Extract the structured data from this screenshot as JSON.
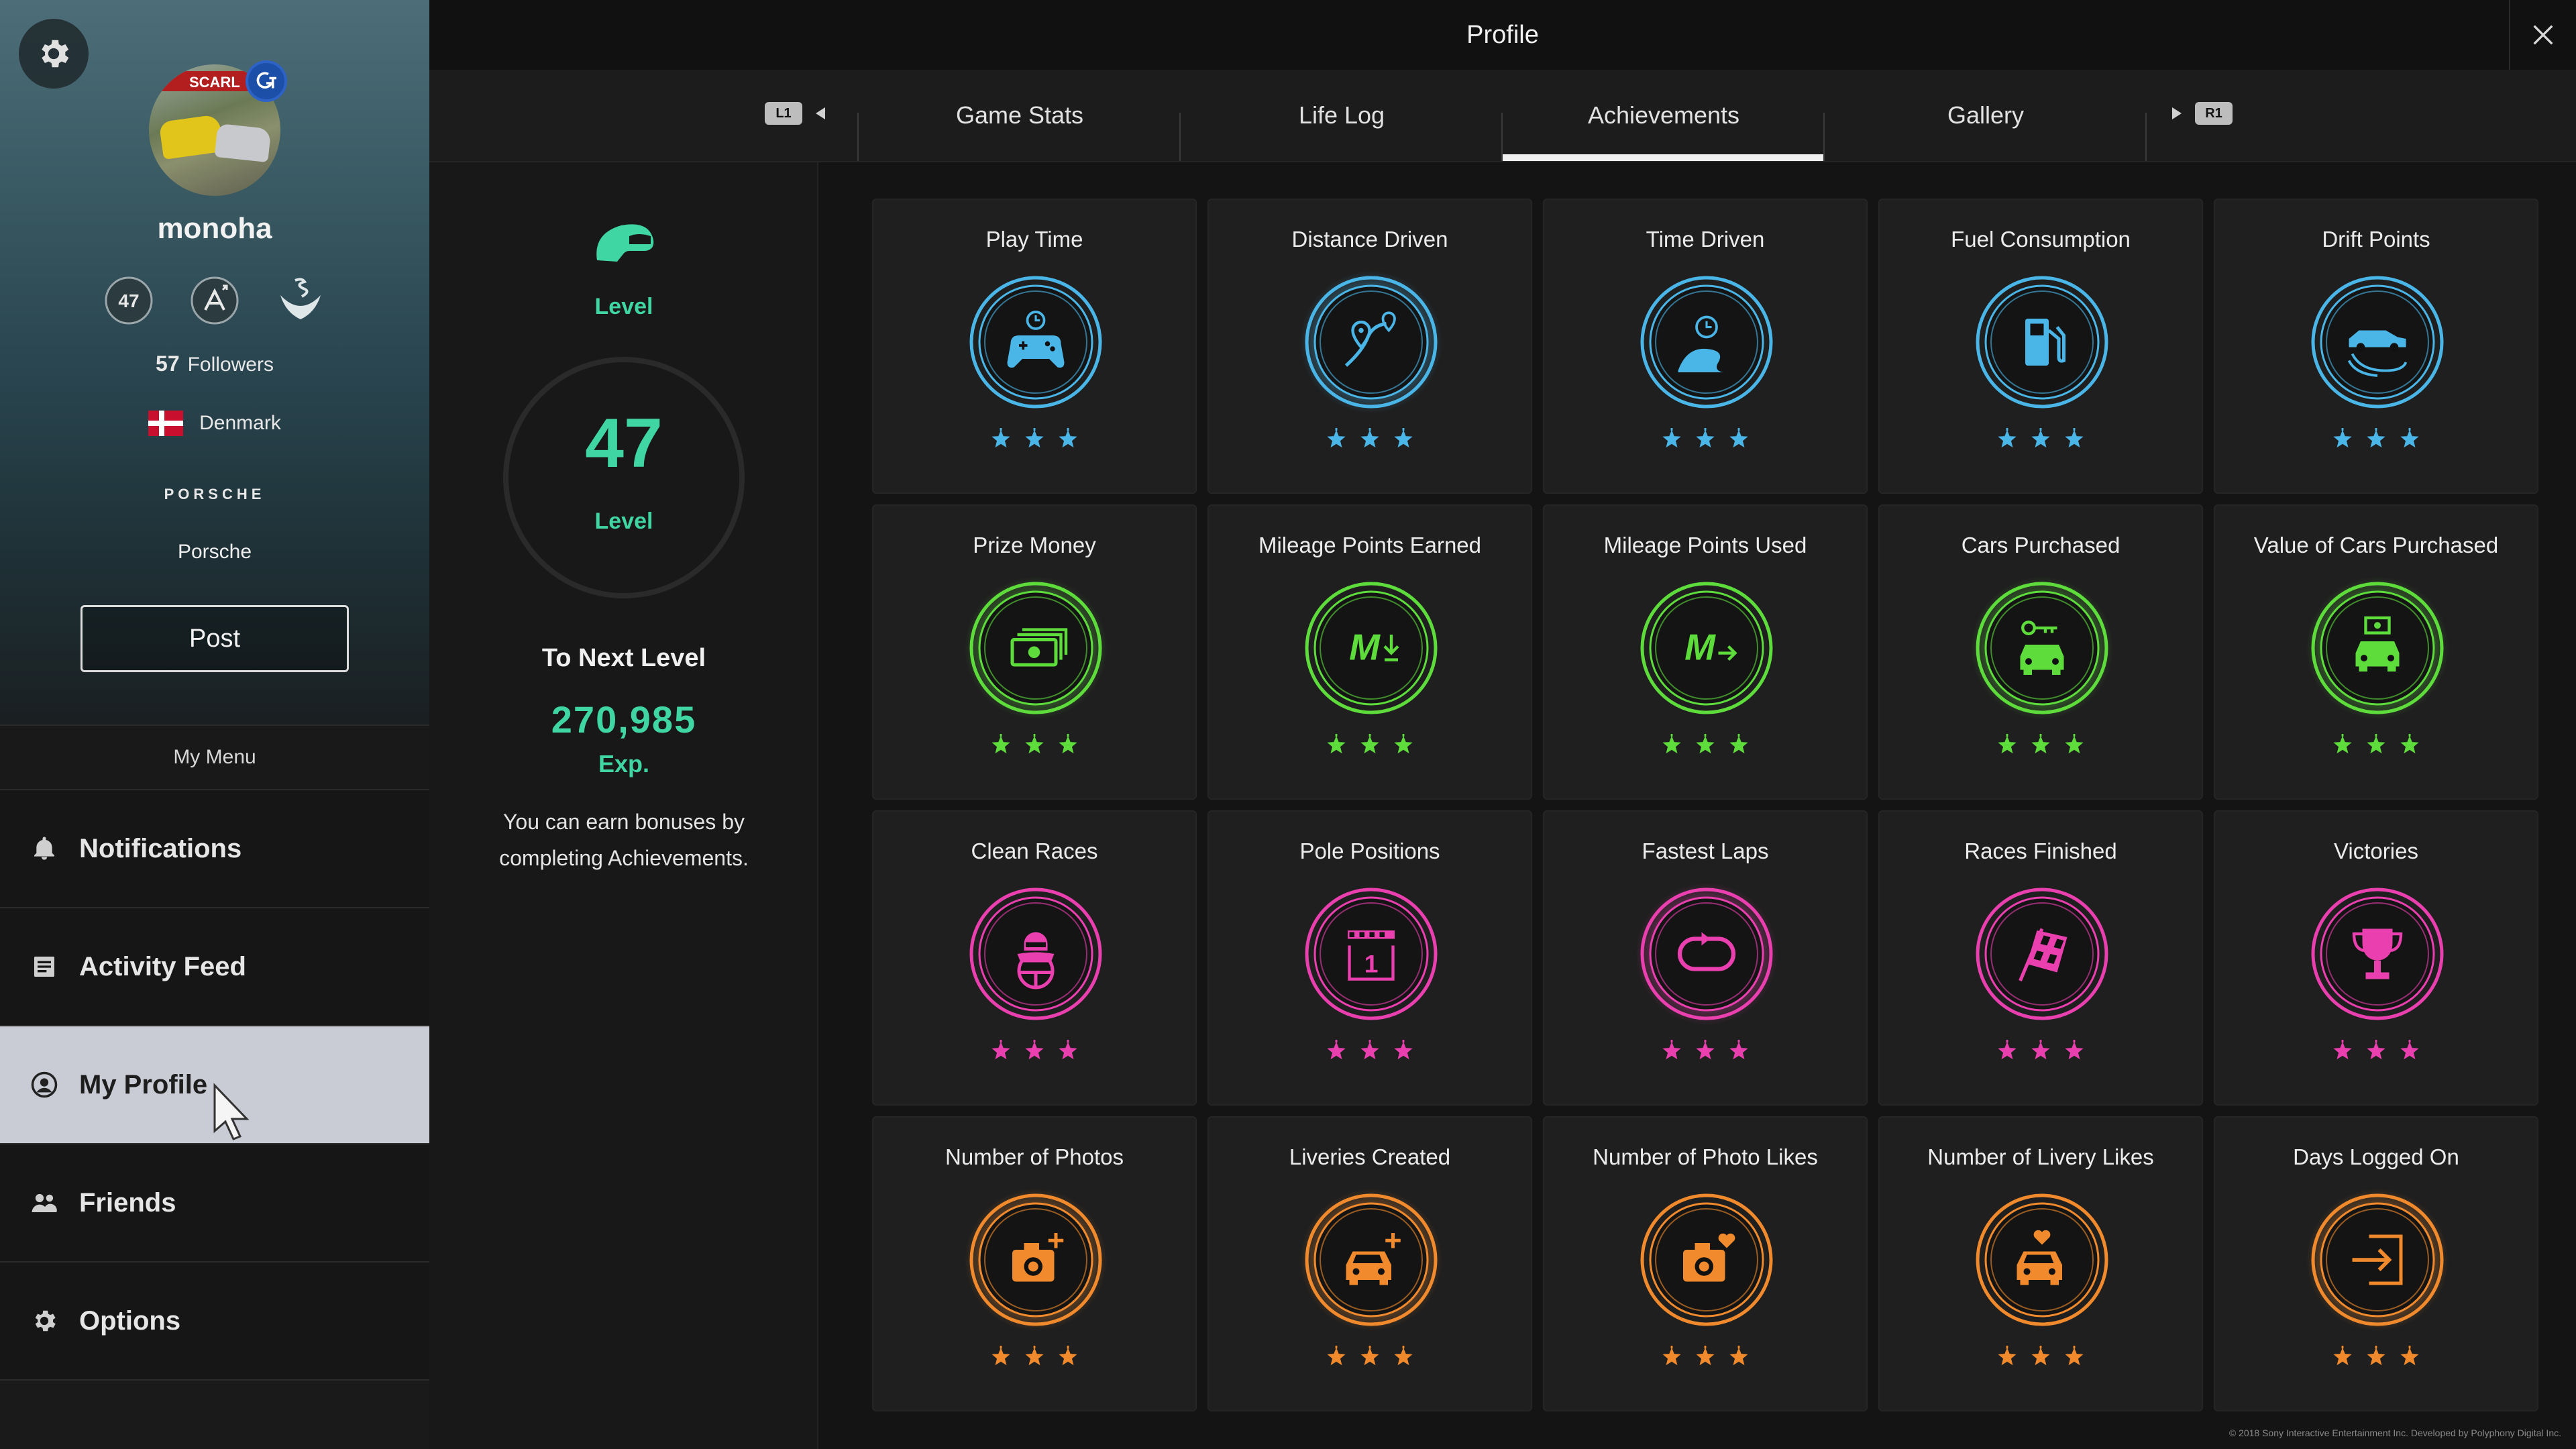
{
  "sidebar": {
    "username": "monoha",
    "level_badge": "47",
    "followers_count": "57",
    "followers_label": "Followers",
    "country": "Denmark",
    "brand_logo": "PORSCHE",
    "brand_name": "Porsche",
    "post_label": "Post",
    "menu_title": "My Menu",
    "menu_items": [
      {
        "label": "Notifications",
        "icon": "bell-icon"
      },
      {
        "label": "Activity Feed",
        "icon": "feed-icon"
      },
      {
        "label": "My Profile",
        "icon": "profile-icon",
        "active": true
      },
      {
        "label": "Friends",
        "icon": "friends-icon"
      },
      {
        "label": "Options",
        "icon": "gear-icon"
      }
    ],
    "avatar_banner": "SCARL"
  },
  "header": {
    "title": "Profile"
  },
  "tabs": {
    "left_hint": "L1",
    "right_hint": "R1",
    "items": [
      {
        "label": "Game Stats"
      },
      {
        "label": "Life Log"
      },
      {
        "label": "Achievements",
        "active": true
      },
      {
        "label": "Gallery"
      }
    ]
  },
  "level_panel": {
    "label_top": "Level",
    "level": "47",
    "label_bottom": "Level",
    "next_label": "To Next Level",
    "next_value": "270,985",
    "next_unit": "Exp.",
    "bonus_text": "You can earn bonuses by completing Achievements."
  },
  "colors": {
    "accent": "#3fd6a4",
    "blue": "#4ab6e8",
    "green": "#5ddc3c",
    "pink": "#ea3fae",
    "orange": "#f08a2c"
  },
  "achievements": [
    {
      "title": "Play Time",
      "color": "blue",
      "icon": "controller-clock-icon",
      "stars": 3,
      "glow": false
    },
    {
      "title": "Distance Driven",
      "color": "blue",
      "icon": "route-pin-icon",
      "stars": 3,
      "glow": true
    },
    {
      "title": "Time Driven",
      "color": "blue",
      "icon": "road-clock-icon",
      "stars": 3,
      "glow": false
    },
    {
      "title": "Fuel Consumption",
      "color": "blue",
      "icon": "fuel-pump-icon",
      "stars": 3,
      "glow": false
    },
    {
      "title": "Drift Points",
      "color": "blue",
      "icon": "drift-car-icon",
      "stars": 3,
      "glow": false
    },
    {
      "title": "Prize Money",
      "color": "green",
      "icon": "cash-icon",
      "stars": 3,
      "glow": true
    },
    {
      "title": "Mileage Points Earned",
      "color": "green",
      "icon": "mileage-earn-icon",
      "stars": 3,
      "glow": false
    },
    {
      "title": "Mileage Points Used",
      "color": "green",
      "icon": "mileage-use-icon",
      "stars": 3,
      "glow": false
    },
    {
      "title": "Cars Purchased",
      "color": "green",
      "icon": "car-key-icon",
      "stars": 3,
      "glow": true
    },
    {
      "title": "Value of Cars Purchased",
      "color": "green",
      "icon": "car-cash-icon",
      "stars": 3,
      "glow": true
    },
    {
      "title": "Clean Races",
      "color": "pink",
      "icon": "driver-icon",
      "stars": 3,
      "glow": false
    },
    {
      "title": "Pole Positions",
      "color": "pink",
      "icon": "pole-position-icon",
      "stars": 3,
      "glow": false
    },
    {
      "title": "Fastest Laps",
      "color": "pink",
      "icon": "lap-loop-icon",
      "stars": 3,
      "glow": true
    },
    {
      "title": "Races Finished",
      "color": "pink",
      "icon": "checkered-flag-icon",
      "stars": 3,
      "glow": false
    },
    {
      "title": "Victories",
      "color": "pink",
      "icon": "trophy-icon",
      "stars": 3,
      "glow": false
    },
    {
      "title": "Number of Photos",
      "color": "orange",
      "icon": "camera-plus-icon",
      "stars": 3,
      "glow": true
    },
    {
      "title": "Liveries Created",
      "color": "orange",
      "icon": "car-plus-icon",
      "stars": 3,
      "glow": true
    },
    {
      "title": "Number of Photo Likes",
      "color": "orange",
      "icon": "camera-heart-icon",
      "stars": 3,
      "glow": false
    },
    {
      "title": "Number of Livery Likes",
      "color": "orange",
      "icon": "car-heart-icon",
      "stars": 3,
      "glow": false
    },
    {
      "title": "Days Logged On",
      "color": "orange",
      "icon": "login-icon",
      "stars": 3,
      "glow": true
    }
  ],
  "footer": {
    "copyright": "© 2018 Sony Interactive Entertainment Inc. Developed by Polyphony Digital Inc."
  }
}
